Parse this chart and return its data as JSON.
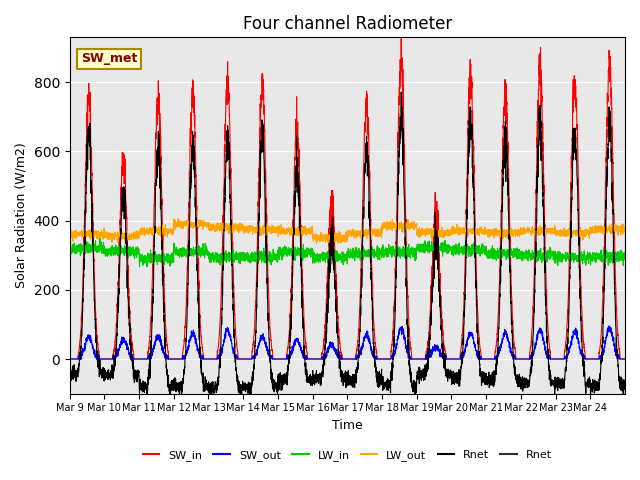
{
  "title": "Four channel Radiometer",
  "ylabel": "Solar Radiation (W/m2)",
  "xlabel": "Time",
  "ylim": [
    -100,
    930
  ],
  "background_color": "#e8e8e8",
  "grid_color": "white",
  "annotation_text": "SW_met",
  "annotation_bg": "#ffffcc",
  "annotation_border": "#aa8800",
  "x_tick_labels": [
    "Mar 9",
    "Mar 10",
    "Mar 11",
    "Mar 12",
    "Mar 13",
    "Mar 14",
    "Mar 15",
    "Mar 16",
    "Mar 17",
    "Mar 18",
    "Mar 19",
    "Mar 20",
    "Mar 21",
    "Mar 22",
    "Mar 23",
    "Mar 24"
  ],
  "legend_entries": [
    {
      "label": "SW_in",
      "color": "#ff0000"
    },
    {
      "label": "SW_out",
      "color": "#0000ff"
    },
    {
      "label": "LW_in",
      "color": "#00cc00"
    },
    {
      "label": "LW_out",
      "color": "#ffa500"
    },
    {
      "label": "Rnet",
      "color": "#000000"
    },
    {
      "label": "Rnet",
      "color": "#333333"
    }
  ],
  "n_days": 16,
  "peaks_sw_in": [
    760,
    580,
    760,
    770,
    800,
    800,
    670,
    450,
    740,
    870,
    420,
    820,
    780,
    850,
    820,
    850
  ],
  "peaks_sw_out": [
    65,
    55,
    65,
    75,
    85,
    65,
    55,
    40,
    70,
    90,
    35,
    75,
    75,
    85,
    80,
    90
  ],
  "lw_in_base": [
    320,
    310,
    290,
    310,
    295,
    295,
    310,
    295,
    305,
    310,
    320,
    315,
    305,
    300,
    295,
    295
  ],
  "lw_out_base": [
    360,
    355,
    370,
    390,
    380,
    375,
    370,
    350,
    365,
    385,
    365,
    370,
    365,
    370,
    365,
    375
  ]
}
